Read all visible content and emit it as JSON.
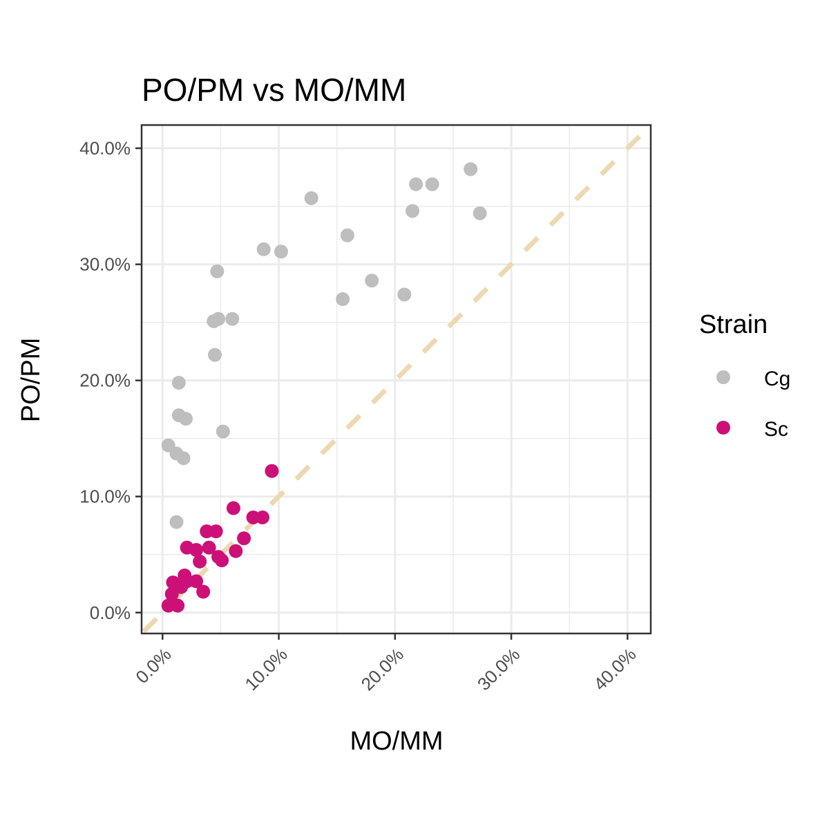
{
  "chart_data": {
    "type": "scatter",
    "title": "PO/PM vs MO/MM",
    "xlabel": "MO/MM",
    "ylabel": "PO/PM",
    "xlim": [
      -1.8,
      42
    ],
    "ylim": [
      -1.8,
      42
    ],
    "x_ticks": [
      0,
      10,
      20,
      30,
      40
    ],
    "y_ticks": [
      0,
      10,
      20,
      30,
      40
    ],
    "x_tick_labels": [
      "0.0%",
      "10.0%",
      "20.0%",
      "30.0%",
      "40.0%"
    ],
    "y_tick_labels": [
      "0.0%",
      "10.0%",
      "20.0%",
      "30.0%",
      "40.0%"
    ],
    "grid": true,
    "reference_line": {
      "style": "dashed",
      "slope": 1,
      "intercept": 0,
      "color": "#ecd9b0"
    },
    "legend": {
      "title": "Strain",
      "position": "right"
    },
    "series": [
      {
        "name": "Cg",
        "color": "#bebebe",
        "points": [
          [
            0.5,
            14.4
          ],
          [
            1.2,
            13.7
          ],
          [
            1.8,
            13.3
          ],
          [
            1.2,
            7.8
          ],
          [
            1.4,
            19.8
          ],
          [
            1.4,
            17.0
          ],
          [
            2.0,
            16.7
          ],
          [
            4.5,
            22.2
          ],
          [
            4.4,
            25.1
          ],
          [
            4.8,
            25.3
          ],
          [
            6.0,
            25.3
          ],
          [
            4.7,
            29.4
          ],
          [
            5.2,
            15.6
          ],
          [
            8.7,
            31.3
          ],
          [
            10.2,
            31.1
          ],
          [
            12.8,
            35.7
          ],
          [
            15.9,
            32.5
          ],
          [
            15.5,
            27.0
          ],
          [
            18.0,
            28.6
          ],
          [
            20.8,
            27.4
          ],
          [
            21.5,
            34.6
          ],
          [
            21.8,
            36.9
          ],
          [
            23.2,
            36.9
          ],
          [
            26.5,
            38.2
          ],
          [
            27.3,
            34.4
          ]
        ]
      },
      {
        "name": "Sc",
        "color": "#cc1077",
        "points": [
          [
            0.5,
            0.6
          ],
          [
            1.3,
            0.6
          ],
          [
            0.8,
            1.6
          ],
          [
            0.9,
            2.6
          ],
          [
            1.6,
            2.2
          ],
          [
            1.9,
            3.2
          ],
          [
            2.1,
            2.7
          ],
          [
            2.9,
            2.7
          ],
          [
            3.5,
            1.8
          ],
          [
            2.1,
            5.6
          ],
          [
            2.9,
            5.4
          ],
          [
            3.2,
            4.4
          ],
          [
            4.0,
            5.6
          ],
          [
            3.8,
            7.0
          ],
          [
            4.6,
            7.0
          ],
          [
            4.8,
            4.8
          ],
          [
            5.1,
            4.5
          ],
          [
            6.1,
            9.0
          ],
          [
            6.3,
            5.3
          ],
          [
            7.0,
            6.4
          ],
          [
            7.8,
            8.2
          ],
          [
            8.6,
            8.2
          ],
          [
            9.4,
            12.2
          ]
        ]
      }
    ]
  }
}
